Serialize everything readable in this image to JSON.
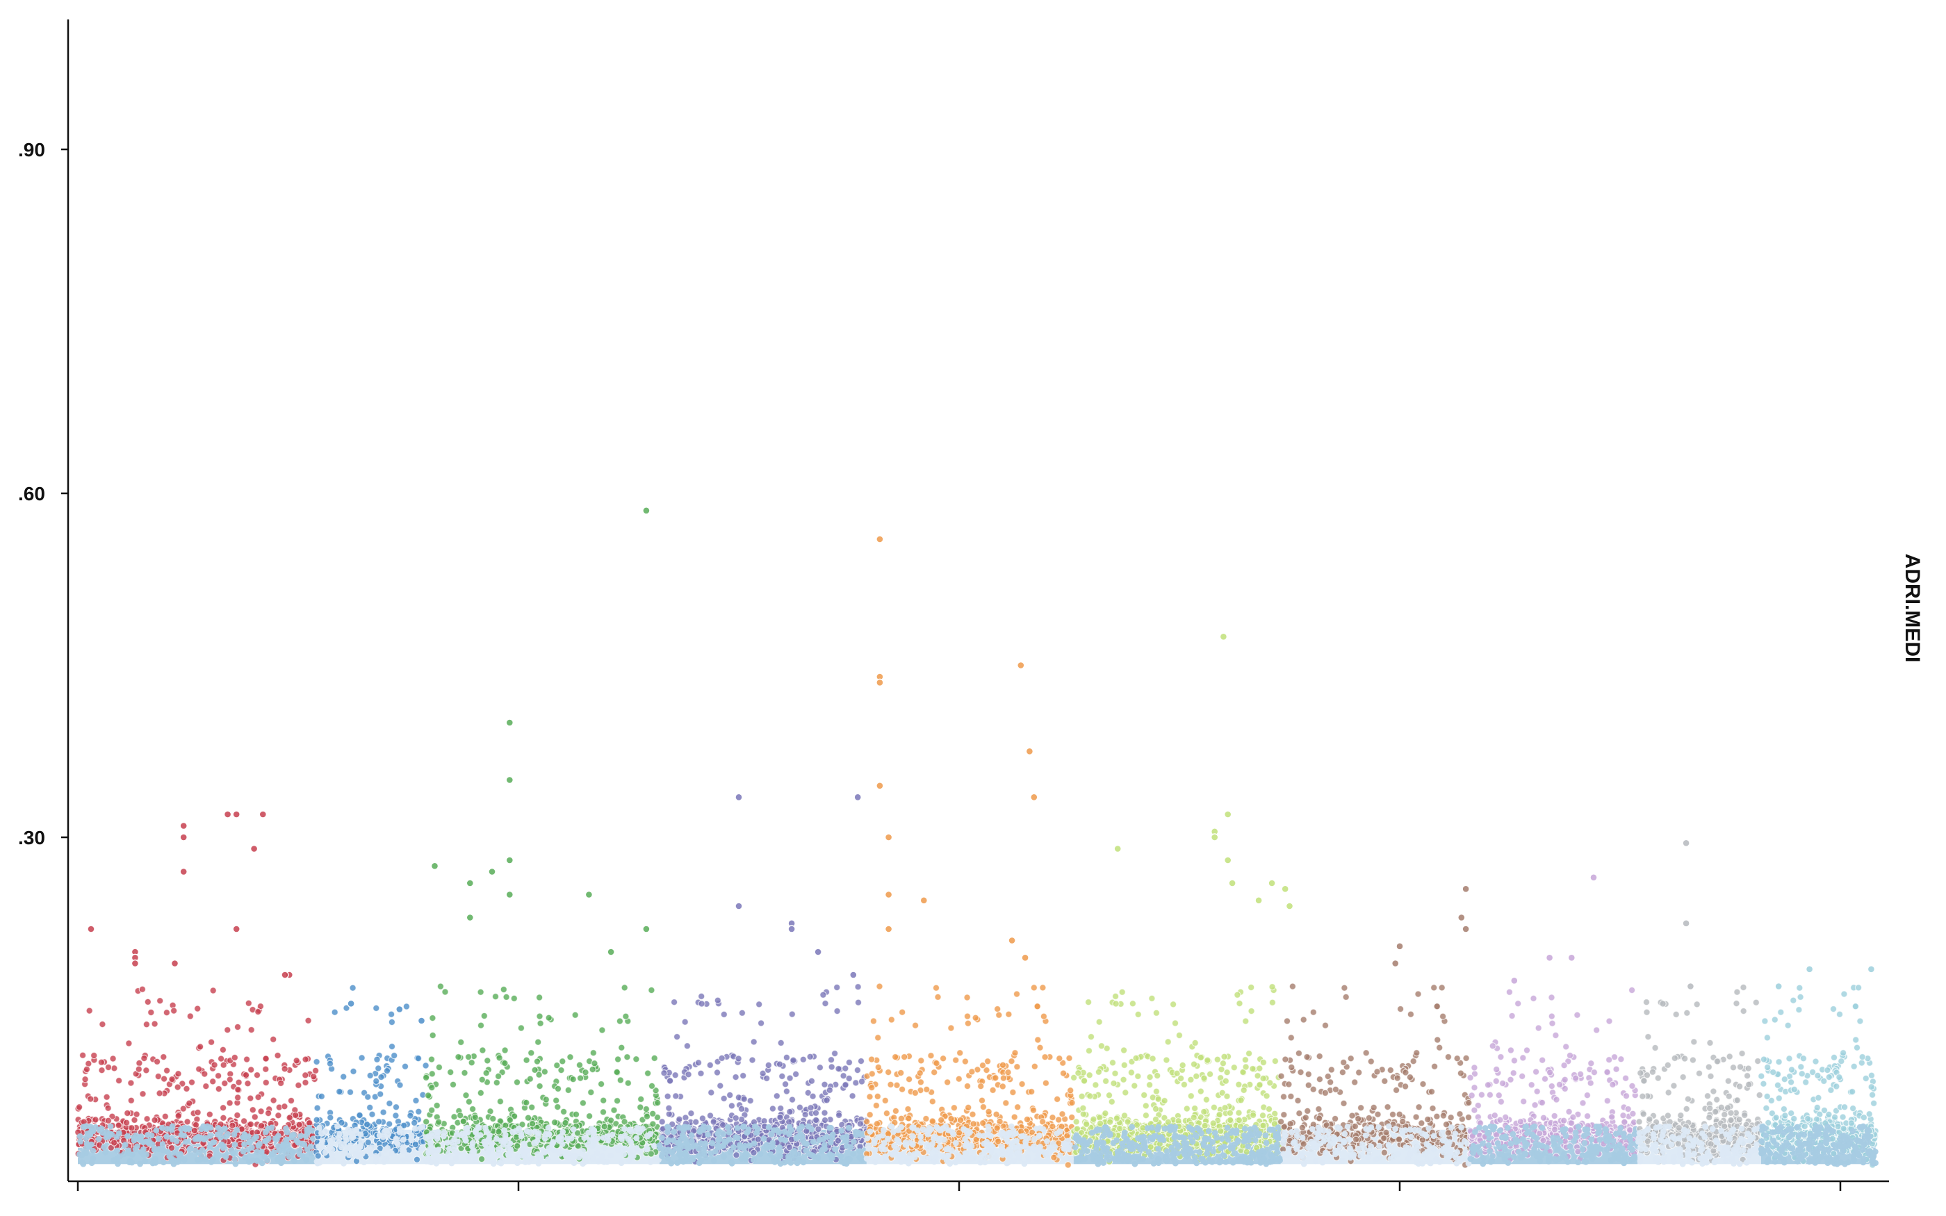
{
  "chart_data": {
    "type": "scatter",
    "title": "",
    "xlabel": "",
    "ylabel": "ADRI.MEDI",
    "ylim": [
      0.0,
      1.0
    ],
    "y_ticks": [
      {
        "value": 0.9,
        "label": ".90"
      },
      {
        "value": 0.6,
        "label": ".60"
      },
      {
        "value": 0.3,
        "label": ".30"
      }
    ],
    "x_ticks": [
      0,
      1,
      2,
      3,
      4
    ],
    "x_tick_labels": [
      "",
      "",
      "",
      "",
      ""
    ],
    "band_colors": [
      "#a6cbe3",
      "#dce9f5"
    ],
    "series": [
      {
        "color": "#c7404f",
        "band": 0,
        "x_range": [
          0.0,
          0.54
        ],
        "n": 700,
        "outliers": [
          [
            0.03,
            0.22
          ],
          [
            0.13,
            0.2
          ],
          [
            0.13,
            0.195
          ],
          [
            0.24,
            0.31
          ],
          [
            0.24,
            0.3
          ],
          [
            0.24,
            0.27
          ],
          [
            0.34,
            0.32
          ],
          [
            0.36,
            0.32
          ],
          [
            0.42,
            0.32
          ],
          [
            0.4,
            0.29
          ],
          [
            0.36,
            0.22
          ],
          [
            0.48,
            0.18
          ],
          [
            0.47,
            0.18
          ],
          [
            0.22,
            0.19
          ],
          [
            0.13,
            0.19
          ]
        ]
      },
      {
        "color": "#4c8ec9",
        "band": 1,
        "x_range": [
          0.54,
          0.79
        ],
        "n": 260,
        "outliers": [
          [
            0.62,
            0.155
          ],
          [
            0.73,
            0.15
          ],
          [
            0.78,
            0.14
          ]
        ]
      },
      {
        "color": "#58ad58",
        "band": 1,
        "x_range": [
          0.79,
          1.32
        ],
        "n": 620,
        "outliers": [
          [
            0.81,
            0.275
          ],
          [
            0.89,
            0.26
          ],
          [
            0.94,
            0.27
          ],
          [
            0.98,
            0.4
          ],
          [
            0.98,
            0.35
          ],
          [
            0.98,
            0.28
          ],
          [
            0.98,
            0.25
          ],
          [
            1.29,
            0.585
          ],
          [
            1.16,
            0.25
          ],
          [
            1.29,
            0.22
          ],
          [
            0.89,
            0.23
          ],
          [
            1.21,
            0.2
          ]
        ]
      },
      {
        "color": "#7a77b8",
        "band": 0,
        "x_range": [
          1.32,
          1.79
        ],
        "n": 620,
        "outliers": [
          [
            1.5,
            0.335
          ],
          [
            1.77,
            0.335
          ],
          [
            1.5,
            0.24
          ],
          [
            1.62,
            0.225
          ],
          [
            1.62,
            0.22
          ],
          [
            1.68,
            0.2
          ],
          [
            1.76,
            0.18
          ]
        ]
      },
      {
        "color": "#ef9a4b",
        "band": 1,
        "x_range": [
          1.79,
          2.26
        ],
        "n": 620,
        "outliers": [
          [
            1.82,
            0.56
          ],
          [
            1.82,
            0.44
          ],
          [
            1.82,
            0.435
          ],
          [
            1.82,
            0.345
          ],
          [
            1.84,
            0.3
          ],
          [
            1.84,
            0.25
          ],
          [
            1.84,
            0.22
          ],
          [
            1.92,
            0.245
          ],
          [
            2.14,
            0.45
          ],
          [
            2.16,
            0.375
          ],
          [
            2.17,
            0.335
          ],
          [
            2.12,
            0.21
          ],
          [
            2.15,
            0.195
          ]
        ]
      },
      {
        "color": "#c1e07a",
        "band": 0,
        "x_range": [
          2.26,
          2.73
        ],
        "n": 800,
        "outliers": [
          [
            2.6,
            0.475
          ],
          [
            2.61,
            0.32
          ],
          [
            2.58,
            0.305
          ],
          [
            2.58,
            0.3
          ],
          [
            2.61,
            0.28
          ],
          [
            2.36,
            0.29
          ],
          [
            2.71,
            0.26
          ],
          [
            2.74,
            0.255
          ],
          [
            2.75,
            0.24
          ],
          [
            2.62,
            0.26
          ],
          [
            2.68,
            0.245
          ]
        ]
      },
      {
        "color": "#a57d6d",
        "band": 1,
        "x_range": [
          2.73,
          3.16
        ],
        "n": 460,
        "outliers": [
          [
            3.15,
            0.255
          ],
          [
            3.14,
            0.23
          ],
          [
            3.15,
            0.22
          ],
          [
            3.0,
            0.205
          ],
          [
            2.99,
            0.19
          ]
        ]
      },
      {
        "color": "#c7a6d8",
        "band": 0,
        "x_range": [
          3.16,
          3.54
        ],
        "n": 500,
        "outliers": [
          [
            3.44,
            0.265
          ],
          [
            3.34,
            0.195
          ],
          [
            3.39,
            0.195
          ],
          [
            3.26,
            0.175
          ]
        ]
      },
      {
        "color": "#b5b9bd",
        "band": 1,
        "x_range": [
          3.54,
          3.82
        ],
        "n": 360,
        "outliers": [
          [
            3.65,
            0.295
          ],
          [
            3.65,
            0.225
          ],
          [
            3.66,
            0.17
          ]
        ]
      },
      {
        "color": "#9ccfdc",
        "band": 0,
        "x_range": [
          3.82,
          4.08
        ],
        "n": 460,
        "outliers": [
          [
            4.07,
            0.185
          ],
          [
            3.93,
            0.185
          ],
          [
            3.86,
            0.17
          ]
        ]
      }
    ]
  }
}
